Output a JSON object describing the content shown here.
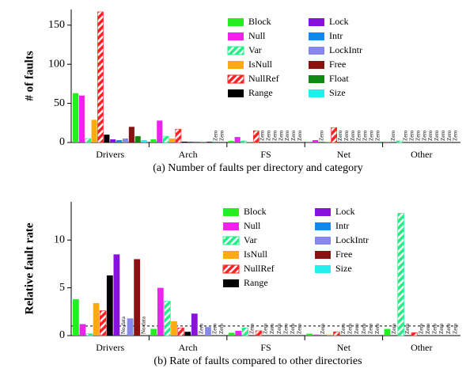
{
  "chart_data": [
    {
      "type": "bar",
      "ylabel": "# of faults",
      "caption": "(a)  Number of faults per directory and category",
      "categories": [
        "Drivers",
        "Arch",
        "FS",
        "Net",
        "Other"
      ],
      "ylim": [
        0,
        170
      ],
      "yticks": [
        0,
        50,
        100,
        150
      ],
      "series": [
        {
          "name": "Block",
          "color": "#22ee22",
          "values": [
            63,
            4,
            2,
            1,
            1
          ],
          "value_labels": [
            null,
            null,
            null,
            null,
            null
          ]
        },
        {
          "name": "Null",
          "color": "#ee22ee",
          "values": [
            60,
            28,
            7,
            3,
            0
          ],
          "value_labels": [
            null,
            null,
            null,
            null,
            "Zero"
          ]
        },
        {
          "name": "Var",
          "color": "#22ee88",
          "hatch": true,
          "values": [
            5,
            8,
            2,
            0,
            2
          ],
          "value_labels": [
            null,
            null,
            null,
            "Zero",
            null
          ]
        },
        {
          "name": "IsNull",
          "color": "#ffaa11",
          "values": [
            29,
            5,
            1,
            1,
            0
          ],
          "value_labels": [
            null,
            null,
            null,
            null,
            "Zero"
          ]
        },
        {
          "name": "NullRef",
          "color": "#ff2222",
          "hatch": true,
          "values": [
            167,
            17,
            15,
            19,
            0
          ],
          "value_labels": [
            null,
            null,
            null,
            null,
            "Zero"
          ]
        },
        {
          "name": "Range",
          "color": "#000000",
          "values": [
            10,
            1,
            0,
            0,
            0
          ],
          "value_labels": [
            null,
            null,
            "Zero",
            "Zero",
            "Zero"
          ]
        },
        {
          "name": "Lock",
          "color": "#8811dd",
          "values": [
            4,
            1,
            0,
            0,
            0
          ],
          "value_labels": [
            null,
            null,
            "Zero",
            "Zero",
            "Zero"
          ]
        },
        {
          "name": "Intr",
          "color": "#1188ee",
          "values": [
            3,
            1,
            0,
            0,
            0
          ],
          "value_labels": [
            null,
            null,
            "Zero",
            "Zero",
            "Zero"
          ]
        },
        {
          "name": "LockIntr",
          "color": "#8888ee",
          "values": [
            5,
            1,
            0,
            0,
            0
          ],
          "value_labels": [
            null,
            null,
            "Zero",
            "Zero",
            "Zero"
          ]
        },
        {
          "name": "Free",
          "color": "#881111",
          "values": [
            20,
            1,
            0,
            0,
            0
          ],
          "value_labels": [
            null,
            null,
            "Zero",
            "Zero",
            "Zero"
          ]
        },
        {
          "name": "Float",
          "color": "#118811",
          "values": [
            8,
            0,
            0,
            0,
            0
          ],
          "value_labels": [
            null,
            "Zero",
            "Zero",
            "Zero",
            "Zero"
          ]
        },
        {
          "name": "Size",
          "color": "#22eeee",
          "values": [
            3,
            0,
            0,
            0,
            0
          ],
          "value_labels": [
            null,
            "Zero",
            "Zero",
            "Zero",
            "Zero"
          ]
        }
      ]
    },
    {
      "type": "bar",
      "ylabel": "Relative fault rate",
      "caption": "(b)  Rate of faults compared to other directories",
      "categories": [
        "Drivers",
        "Arch",
        "FS",
        "Net",
        "Other"
      ],
      "ylim": [
        0,
        14
      ],
      "yticks": [
        0,
        5,
        10
      ],
      "reference_line": 1,
      "series": [
        {
          "name": "Block",
          "color": "#22ee22",
          "values": [
            3.8,
            0.7,
            0.3,
            0.2,
            0.7
          ],
          "value_labels": [
            null,
            null,
            null,
            null,
            null
          ]
        },
        {
          "name": "Null",
          "color": "#ee22ee",
          "values": [
            1.2,
            5.0,
            0.5,
            0.1,
            0
          ],
          "value_labels": [
            null,
            null,
            null,
            null,
            "Zero"
          ]
        },
        {
          "name": "Var",
          "color": "#22ee88",
          "hatch": true,
          "values": [
            0.2,
            3.6,
            0.8,
            0,
            12.8
          ],
          "value_labels": [
            null,
            null,
            null,
            "Zero",
            null
          ]
        },
        {
          "name": "IsNull",
          "color": "#ffaa11",
          "values": [
            3.4,
            1.5,
            0,
            0.1,
            0
          ],
          "value_labels": [
            null,
            null,
            "Zero",
            null,
            "Zero"
          ]
        },
        {
          "name": "NullRef",
          "color": "#ff2222",
          "hatch": true,
          "values": [
            2.6,
            0.8,
            0.5,
            0.4,
            0.3
          ],
          "value_labels": [
            null,
            null,
            null,
            null,
            null
          ]
        },
        {
          "name": "Range",
          "color": "#000000",
          "values": [
            6.3,
            0.4,
            0,
            0,
            0
          ],
          "value_labels": [
            null,
            null,
            "Zero",
            "Zero",
            "Zero"
          ]
        },
        {
          "name": "Lock",
          "color": "#8811dd",
          "values": [
            8.5,
            2.3,
            0,
            0,
            0
          ],
          "value_labels": [
            null,
            null,
            "Zero",
            "Zero",
            "Zero"
          ]
        },
        {
          "name": "Intr",
          "color": "#1188ee",
          "values": [
            null,
            0,
            0,
            0,
            0
          ],
          "value_labels": [
            "No data",
            "Zero",
            "Zero",
            "Zero",
            "Zero"
          ]
        },
        {
          "name": "LockIntr",
          "color": "#8888ee",
          "values": [
            1.8,
            0.9,
            0,
            0,
            0
          ],
          "value_labels": [
            null,
            null,
            "Zero",
            "Zero",
            "Zero"
          ]
        },
        {
          "name": "Free",
          "color": "#881111",
          "values": [
            8.0,
            0,
            0,
            0,
            0
          ],
          "value_labels": [
            null,
            "Zero",
            "Zero",
            "Zero",
            "Zero"
          ]
        },
        {
          "name": "Size",
          "color": "#22eeee",
          "values": [
            null,
            0,
            0,
            0,
            0
          ],
          "value_labels": [
            "No data",
            "Zero",
            "Zero",
            "Zero",
            "Zero"
          ]
        }
      ]
    }
  ]
}
